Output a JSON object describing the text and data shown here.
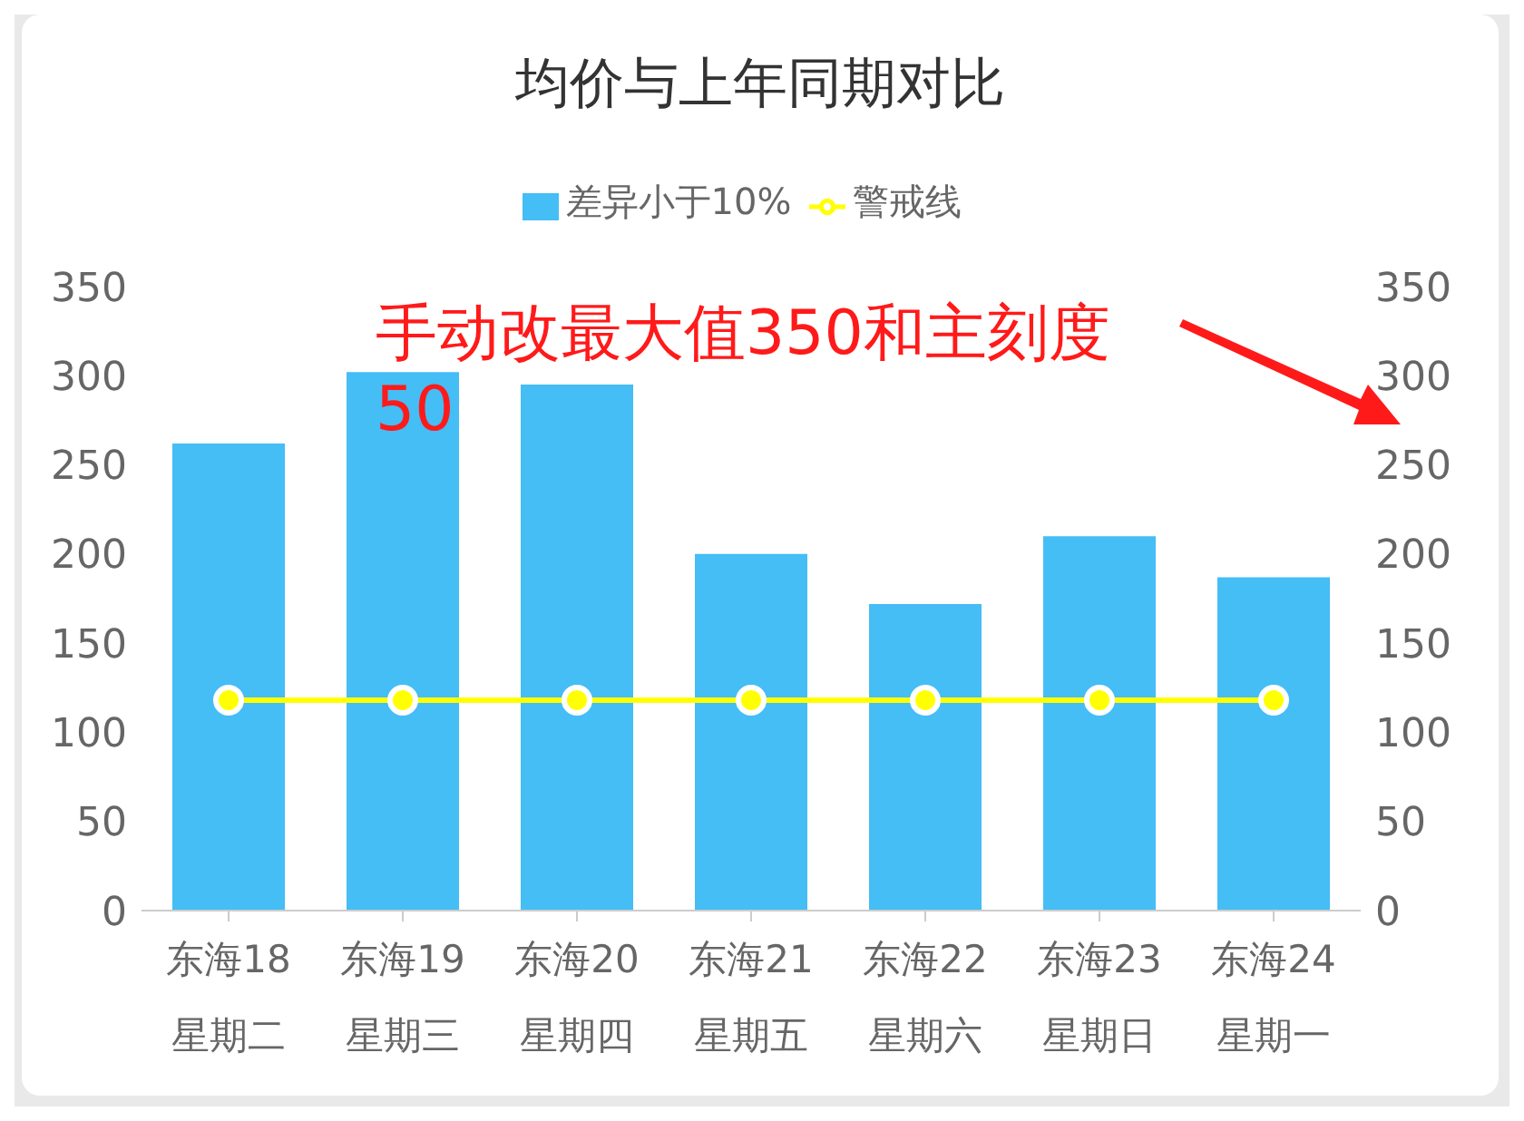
{
  "chart_data": {
    "type": "bar",
    "title": "均价与上年同期对比",
    "categories": [
      "东海18\n星期二",
      "东海19\n星期三",
      "东海20\n星期四",
      "东海21\n星期五",
      "东海22\n星期六",
      "东海23\n星期日",
      "东海24\n星期一"
    ],
    "series": [
      {
        "name": "差异小于10%",
        "color": "#45bdf5",
        "values": [
          262,
          302,
          295,
          200,
          172,
          210,
          187
        ]
      },
      {
        "name": "警戒线",
        "type": "line",
        "color": "#ffff00",
        "marker": "circle",
        "values": [
          118,
          118,
          118,
          118,
          118,
          118,
          118
        ]
      }
    ],
    "ylim": [
      0,
      350
    ],
    "yticks": [
      0,
      50,
      100,
      150,
      200,
      250,
      300,
      350
    ],
    "y2lim": [
      0,
      350
    ],
    "y2ticks": [
      0,
      50,
      100,
      150,
      200,
      250,
      300,
      350
    ],
    "annotations": [
      "手动改最大值350和主刻度50"
    ],
    "legend": "top"
  }
}
